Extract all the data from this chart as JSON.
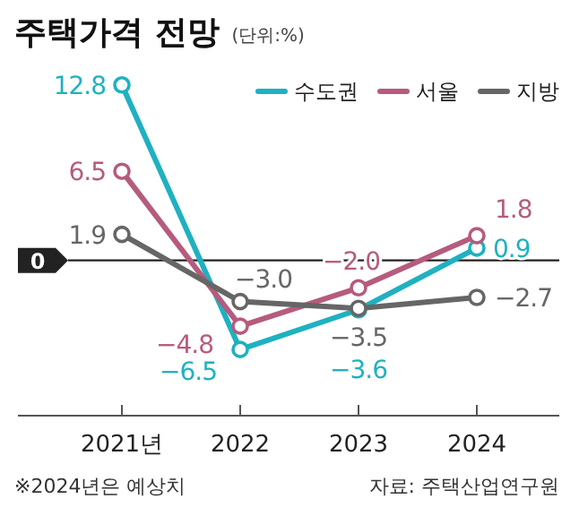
{
  "chart_data": {
    "type": "line",
    "title": "주택가격 전망",
    "subtitle": "(단위:%)",
    "categories": [
      "2021년",
      "2022",
      "2023",
      "2024"
    ],
    "series": [
      {
        "name": "수도권",
        "color": "#1fb1c1",
        "values": [
          12.8,
          -6.5,
          -3.6,
          0.9
        ],
        "value_labels": [
          "12.8",
          "−6.5",
          "−3.6",
          "0.9"
        ]
      },
      {
        "name": "서울",
        "color": "#b65b7d",
        "values": [
          6.5,
          -4.8,
          -2.0,
          1.8
        ],
        "value_labels": [
          "6.5",
          "−4.8",
          "−2.0",
          "1.8"
        ]
      },
      {
        "name": "지방",
        "color": "#666666",
        "values": [
          1.9,
          -3.0,
          -3.5,
          -2.7
        ],
        "value_labels": [
          "1.9",
          "−3.0",
          "−3.5",
          "−2.7"
        ]
      }
    ],
    "ref_lines": [
      {
        "axis": "y",
        "value": 0,
        "label": "0",
        "color": "#222222"
      }
    ],
    "legend": "top right",
    "marker": "circle",
    "line_style": "solid",
    "annotations": [
      "※2024년은 예상치",
      "자료: 주택산업연구원"
    ]
  }
}
